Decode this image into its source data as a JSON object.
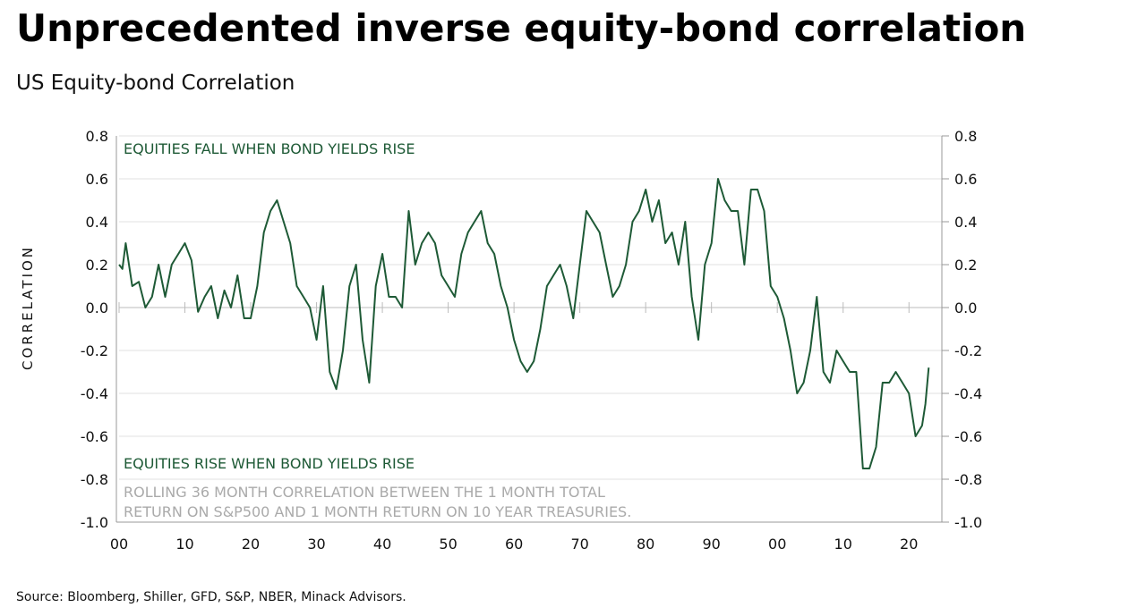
{
  "chart_data": {
    "type": "line",
    "title": "Unprecedented inverse equity-bond correlation",
    "subtitle": "US Equity-bond Correlation",
    "y_label": "CORRELATION",
    "annotation_top": "EQUITIES FALL WHEN BOND YIELDS RISE",
    "annotation_bottom": "EQUITIES RISE WHEN BOND YIELDS RISE",
    "note": [
      "ROLLING 36 MONTH CORRELATION BETWEEN THE 1 MONTH TOTAL",
      "RETURN ON S&P500 AND 1 MONTH RETURN ON 10 YEAR TREASURIES."
    ],
    "source": "Source: Bloomberg, Shiller, GFD, S&P, NBER, Minack Advisors.",
    "x": [
      1900,
      1900.5,
      1901,
      1902,
      1903,
      1904,
      1905,
      1906,
      1907,
      1908,
      1909,
      1910,
      1911,
      1912,
      1913,
      1914,
      1915,
      1916,
      1917,
      1918,
      1919,
      1920,
      1921,
      1922,
      1923,
      1924,
      1925,
      1926,
      1927,
      1928,
      1929,
      1930,
      1931,
      1932,
      1933,
      1934,
      1935,
      1936,
      1937,
      1938,
      1939,
      1940,
      1941,
      1942,
      1943,
      1944,
      1945,
      1946,
      1947,
      1948,
      1949,
      1950,
      1951,
      1952,
      1953,
      1954,
      1955,
      1956,
      1957,
      1958,
      1959,
      1960,
      1961,
      1962,
      1963,
      1964,
      1965,
      1966,
      1967,
      1968,
      1969,
      1970,
      1971,
      1972,
      1973,
      1974,
      1975,
      1976,
      1977,
      1978,
      1979,
      1980,
      1981,
      1982,
      1983,
      1984,
      1985,
      1986,
      1987,
      1988,
      1989,
      1990,
      1991,
      1992,
      1993,
      1994,
      1995,
      1996,
      1997,
      1998,
      1999,
      2000,
      2001,
      2002,
      2003,
      2004,
      2005,
      2006,
      2007,
      2008,
      2009,
      2010,
      2011,
      2012,
      2013,
      2014,
      2015,
      2016,
      2017,
      2018,
      2019,
      2020,
      2021,
      2022,
      2022.5,
      2023
    ],
    "series": [
      {
        "name": "US Equity-bond Correlation",
        "color": "#1e5a36",
        "values": [
          0.2,
          0.18,
          0.3,
          0.1,
          0.12,
          0.0,
          0.05,
          0.2,
          0.05,
          0.2,
          0.25,
          0.3,
          0.22,
          -0.02,
          0.05,
          0.1,
          -0.05,
          0.08,
          0.0,
          0.15,
          -0.05,
          -0.05,
          0.1,
          0.35,
          0.45,
          0.5,
          0.4,
          0.3,
          0.1,
          0.05,
          0.0,
          -0.15,
          0.1,
          -0.3,
          -0.38,
          -0.2,
          0.1,
          0.2,
          -0.15,
          -0.35,
          0.1,
          0.25,
          0.05,
          0.05,
          0.0,
          0.45,
          0.2,
          0.3,
          0.35,
          0.3,
          0.15,
          0.1,
          0.05,
          0.25,
          0.35,
          0.4,
          0.45,
          0.3,
          0.25,
          0.1,
          0.0,
          -0.15,
          -0.25,
          -0.3,
          -0.25,
          -0.1,
          0.1,
          0.15,
          0.2,
          0.1,
          -0.05,
          0.2,
          0.45,
          0.4,
          0.35,
          0.2,
          0.05,
          0.1,
          0.2,
          0.4,
          0.45,
          0.55,
          0.4,
          0.5,
          0.3,
          0.35,
          0.2,
          0.4,
          0.05,
          -0.15,
          0.2,
          0.3,
          0.6,
          0.5,
          0.45,
          0.45,
          0.2,
          0.55,
          0.55,
          0.45,
          0.1,
          0.05,
          -0.05,
          -0.2,
          -0.4,
          -0.35,
          -0.2,
          0.05,
          -0.3,
          -0.35,
          -0.2,
          -0.25,
          -0.3,
          -0.3,
          -0.75,
          -0.75,
          -0.65,
          -0.35,
          -0.35,
          -0.3,
          -0.35,
          -0.4,
          -0.6,
          -0.55,
          -0.45,
          -0.28
        ]
      }
    ],
    "xlim": [
      1900,
      2025
    ],
    "xticks": [
      {
        "value": 1900,
        "label": "00"
      },
      {
        "value": 1910,
        "label": "10"
      },
      {
        "value": 1920,
        "label": "20"
      },
      {
        "value": 1930,
        "label": "30"
      },
      {
        "value": 1940,
        "label": "40"
      },
      {
        "value": 1950,
        "label": "50"
      },
      {
        "value": 1960,
        "label": "60"
      },
      {
        "value": 1970,
        "label": "70"
      },
      {
        "value": 1980,
        "label": "80"
      },
      {
        "value": 1990,
        "label": "90"
      },
      {
        "value": 2000,
        "label": "00"
      },
      {
        "value": 2010,
        "label": "10"
      },
      {
        "value": 2020,
        "label": "20"
      }
    ],
    "ylim": [
      -1.0,
      0.8
    ],
    "yticks": [
      0.8,
      0.6,
      0.4,
      0.2,
      {
        "value": 0,
        "label": "0.0"
      },
      -0.2,
      -0.4,
      -0.6,
      -0.8,
      {
        "value": -1,
        "label": "-1.0"
      }
    ],
    "y2lim": [
      -1.0,
      0.8
    ],
    "y2ticks": [
      0.8,
      0.6,
      0.4,
      0.2,
      {
        "value": 0,
        "label": "0.0"
      },
      -0.2,
      -0.4,
      -0.6,
      -0.8,
      {
        "value": -1,
        "label": "-1.0"
      }
    ],
    "grid": true
  }
}
